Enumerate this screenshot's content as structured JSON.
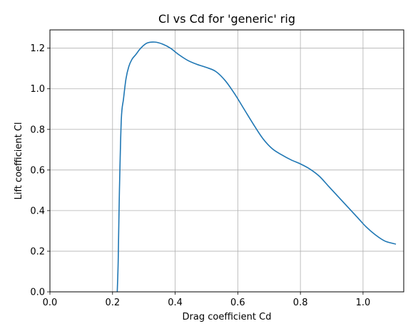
{
  "chart_data": {
    "type": "line",
    "title": "Cl vs Cd for 'generic' rig",
    "xlabel": "Drag coefficient Cd",
    "ylabel": "Lift coefficient Cl",
    "xlim": [
      0.0,
      1.13
    ],
    "ylim": [
      0.0,
      1.29
    ],
    "xticks": [
      0.0,
      0.2,
      0.4,
      0.6,
      0.8,
      1.0
    ],
    "xtick_labels": [
      "0.0",
      "0.2",
      "0.4",
      "0.6",
      "0.8",
      "1.0"
    ],
    "yticks": [
      0.0,
      0.2,
      0.4,
      0.6,
      0.8,
      1.0,
      1.2
    ],
    "ytick_labels": [
      "0.0",
      "0.2",
      "0.4",
      "0.6",
      "0.8",
      "1.0",
      "1.2"
    ],
    "grid": true,
    "legend": false,
    "series": [
      {
        "color": "#1f77b4",
        "x": [
          0.215,
          0.218,
          0.222,
          0.228,
          0.235,
          0.243,
          0.252,
          0.262,
          0.275,
          0.29,
          0.31,
          0.335,
          0.36,
          0.385,
          0.41,
          0.44,
          0.47,
          0.5,
          0.53,
          0.56,
          0.59,
          0.62,
          0.65,
          0.68,
          0.71,
          0.74,
          0.77,
          0.8,
          0.83,
          0.86,
          0.89,
          0.92,
          0.95,
          0.98,
          1.01,
          1.04,
          1.07,
          1.105
        ],
        "y": [
          0.0,
          0.15,
          0.5,
          0.85,
          0.95,
          1.05,
          1.11,
          1.145,
          1.17,
          1.2,
          1.225,
          1.23,
          1.22,
          1.2,
          1.17,
          1.14,
          1.12,
          1.105,
          1.085,
          1.04,
          0.975,
          0.9,
          0.825,
          0.755,
          0.705,
          0.675,
          0.65,
          0.63,
          0.605,
          0.57,
          0.52,
          0.47,
          0.42,
          0.37,
          0.32,
          0.28,
          0.25,
          0.235
        ]
      }
    ]
  }
}
